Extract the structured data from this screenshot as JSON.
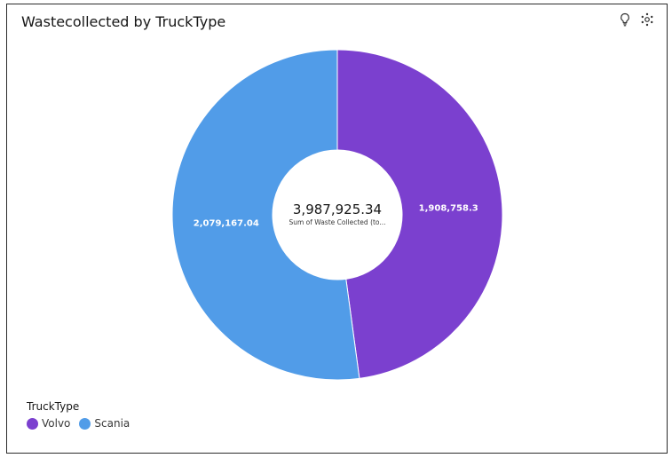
{
  "header": {
    "title": "Wastecollected by TruckType",
    "insights_icon": "lightbulb-icon",
    "settings_icon": "gear-icon"
  },
  "chart_data": {
    "type": "pie",
    "variant": "donut",
    "title": "Wastecollected by TruckType",
    "center_value": "3,987,925.34",
    "center_label": "Sum of Waste Collected (to...",
    "slices": [
      {
        "label": "Volvo",
        "value": 1908758.3,
        "value_label": "1,908,758.3",
        "color": "#7b40cf"
      },
      {
        "label": "Scania",
        "value": 2079167.04,
        "value_label": "2,079,167.04",
        "color": "#519ce8"
      }
    ],
    "legend": {
      "title": "TruckType",
      "placement": "bottom-left"
    }
  }
}
